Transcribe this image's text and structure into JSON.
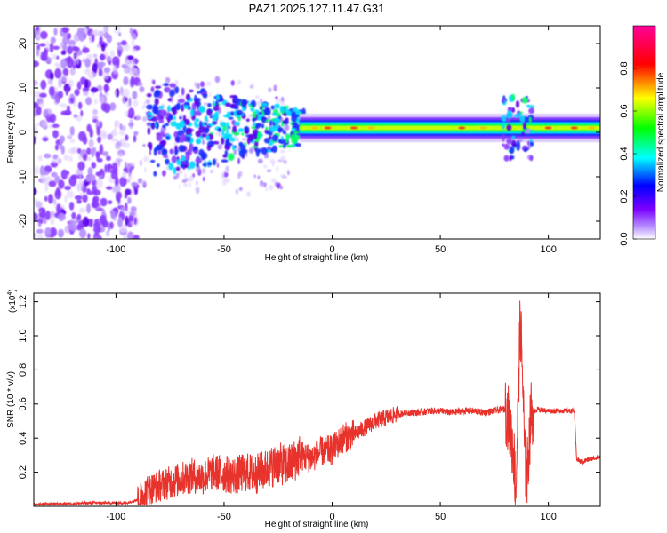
{
  "title": "PAZ1.2025.127.11.47.G31",
  "chart_data": [
    {
      "type": "heatmap",
      "title": "PAZ1.2025.127.11.47.G31",
      "xlabel": "Height of straight line (km)",
      "ylabel": "Frequency (Hz)",
      "xlim": [
        -138,
        124
      ],
      "ylim": [
        -24,
        24
      ],
      "xticks": [
        -100,
        -50,
        0,
        50,
        100
      ],
      "yticks": [
        20,
        10,
        0,
        -10,
        -20
      ],
      "colorbar": {
        "label": "Normalized spectral amplitude",
        "range": [
          0,
          1
        ],
        "ticks": [
          "0.0",
          "0.2",
          "0.4",
          "0.6",
          "0.8"
        ],
        "colors": [
          "#ffffff",
          "#7b00ff",
          "#0000ff",
          "#00ffff",
          "#00ff00",
          "#ffff00",
          "#ff0000",
          "#ff00aa"
        ]
      },
      "features": {
        "noise_region_km": [
          -138,
          -90
        ],
        "transition_region_km": [
          -90,
          -15
        ],
        "stable_band_km": [
          -15,
          124
        ],
        "stable_band_freq_hz": 1,
        "disturbance_km": [
          80,
          92
        ]
      }
    },
    {
      "type": "line",
      "xlabel": "Height of straight line (km)",
      "ylabel": "SNR (10 * v/v)",
      "scale_note": "(x10",
      "scale_exponent": "4",
      "scale_close": ")",
      "xlim": [
        -138,
        124
      ],
      "ylim": [
        0,
        1.25
      ],
      "xticks": [
        -100,
        -50,
        0,
        50,
        100
      ],
      "yticks": [
        "0.2",
        "0.4",
        "0.6",
        "0.8",
        "1.0",
        "1.2"
      ],
      "color": "#e8332c",
      "x": [
        -138,
        -110,
        -95,
        -90,
        -85,
        -80,
        -75,
        -70,
        -65,
        -60,
        -55,
        -50,
        -45,
        -40,
        -35,
        -30,
        -25,
        -20,
        -15,
        -10,
        -5,
        0,
        5,
        10,
        15,
        20,
        25,
        30,
        35,
        40,
        45,
        50,
        55,
        60,
        65,
        70,
        75,
        80,
        82,
        84,
        85,
        86,
        87,
        88,
        89,
        90,
        92,
        95,
        100,
        105,
        110,
        112,
        113,
        115,
        120,
        124
      ],
      "y": [
        0.01,
        0.02,
        0.02,
        0.04,
        0.1,
        0.12,
        0.14,
        0.16,
        0.18,
        0.17,
        0.2,
        0.19,
        0.18,
        0.2,
        0.19,
        0.22,
        0.25,
        0.24,
        0.3,
        0.28,
        0.32,
        0.33,
        0.4,
        0.42,
        0.46,
        0.5,
        0.52,
        0.54,
        0.55,
        0.55,
        0.56,
        0.56,
        0.55,
        0.56,
        0.56,
        0.55,
        0.56,
        0.57,
        0.5,
        0.3,
        0.1,
        0.6,
        1.1,
        0.8,
        0.3,
        0.15,
        0.55,
        0.57,
        0.56,
        0.56,
        0.56,
        0.56,
        0.28,
        0.26,
        0.28,
        0.29
      ]
    }
  ]
}
